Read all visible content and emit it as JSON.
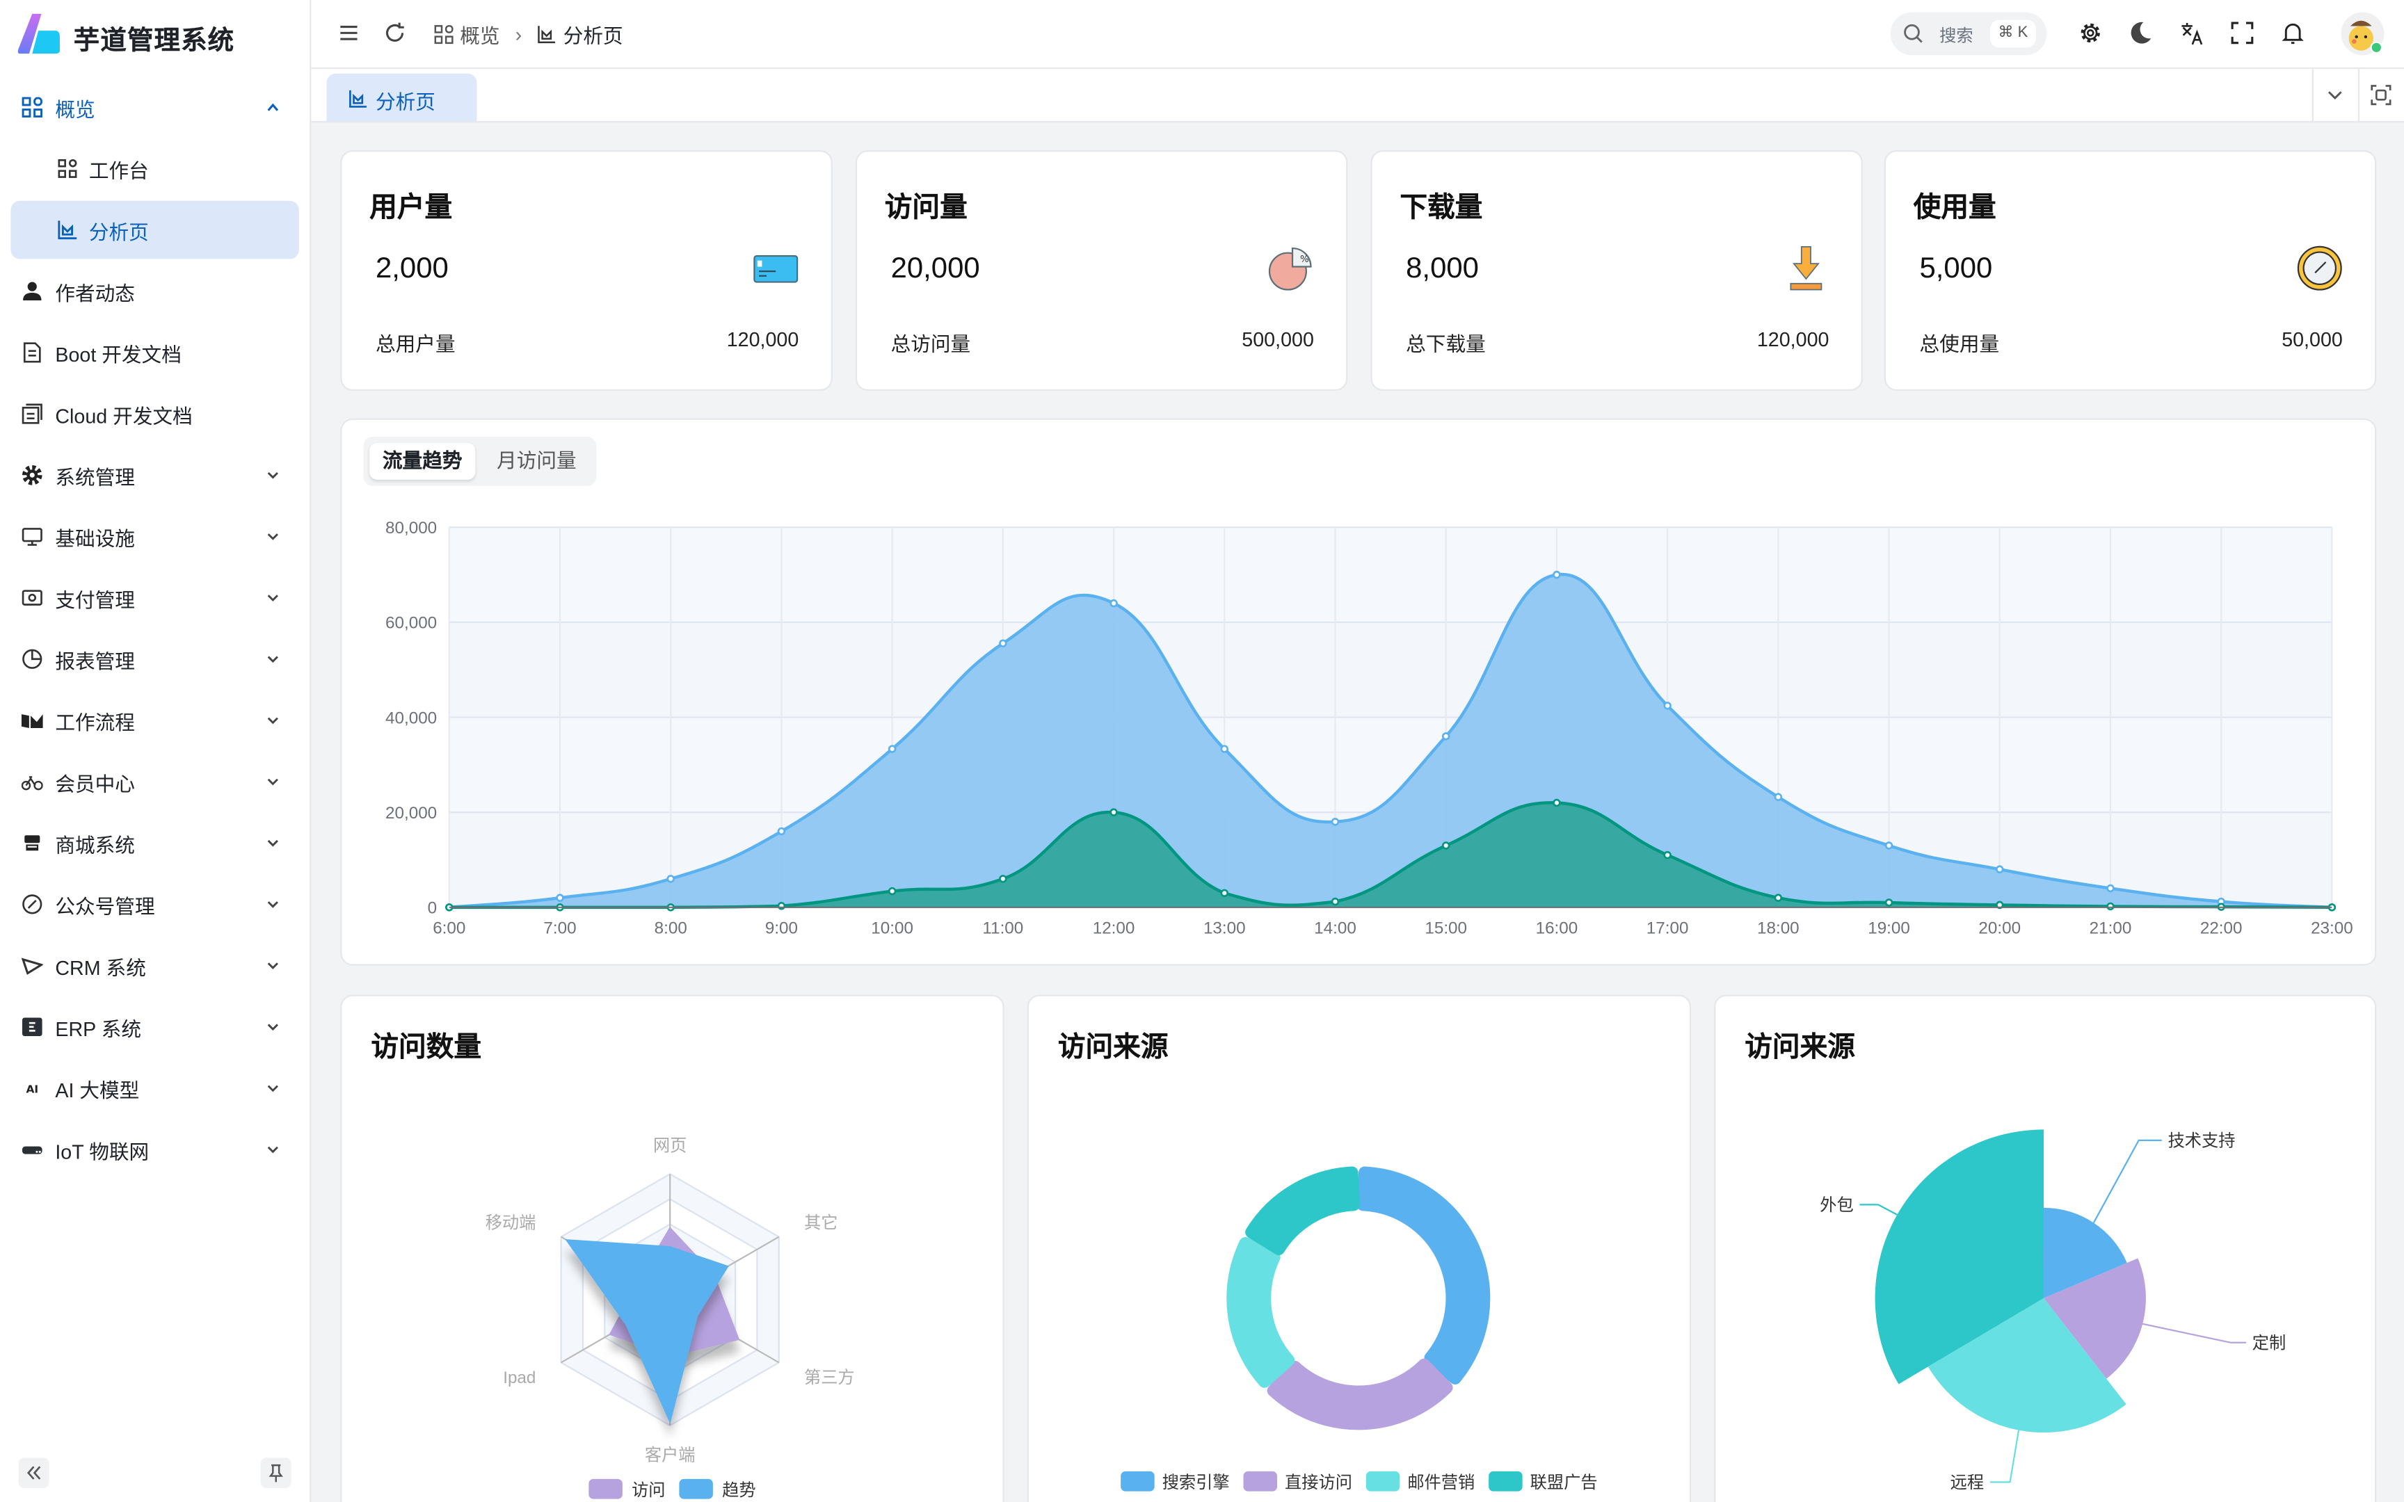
{
  "app": {
    "title": "芋道管理系统"
  },
  "sidebar": {
    "items": [
      {
        "label": "概览",
        "icon": "dashboard-icon",
        "expanded": true
      },
      {
        "label": "工作台",
        "icon": "workspace-icon"
      },
      {
        "label": "分析页",
        "icon": "analysis-icon",
        "active": true
      },
      {
        "label": "作者动态",
        "icon": "user-icon"
      },
      {
        "label": "Boot 开发文档",
        "icon": "document-icon"
      },
      {
        "label": "Cloud 开发文档",
        "icon": "documents-icon"
      },
      {
        "label": "系统管理",
        "icon": "gear-icon"
      },
      {
        "label": "基础设施",
        "icon": "monitor-icon"
      },
      {
        "label": "支付管理",
        "icon": "payment-icon"
      },
      {
        "label": "报表管理",
        "icon": "pie-chart-icon"
      },
      {
        "label": "工作流程",
        "icon": "workflow-icon"
      },
      {
        "label": "会员中心",
        "icon": "bicycle-icon"
      },
      {
        "label": "商城系统",
        "icon": "shop-icon"
      },
      {
        "label": "公众号管理",
        "icon": "compass-icon"
      },
      {
        "label": "CRM 系统",
        "icon": "crm-icon"
      },
      {
        "label": "ERP 系统",
        "icon": "erp-icon"
      },
      {
        "label": "AI 大模型",
        "icon": "ai-icon"
      },
      {
        "label": "IoT 物联网",
        "icon": "iot-icon"
      }
    ]
  },
  "header": {
    "breadcrumb": [
      "概览",
      "分析页"
    ],
    "search": {
      "placeholder": "搜索",
      "shortcut": "⌘ K"
    }
  },
  "tabs": [
    {
      "label": "分析页",
      "active": true
    }
  ],
  "stats": [
    {
      "title": "用户量",
      "value": "2,000",
      "footer_label": "总用户量",
      "footer_value": "120,000",
      "icon": "credit-card-icon"
    },
    {
      "title": "访问量",
      "value": "20,000",
      "footer_label": "总访问量",
      "footer_value": "500,000",
      "icon": "pie-chart-icon"
    },
    {
      "title": "下载量",
      "value": "8,000",
      "footer_label": "总下载量",
      "footer_value": "120,000",
      "icon": "download-icon"
    },
    {
      "title": "使用量",
      "value": "5,000",
      "footer_label": "总使用量",
      "footer_value": "50,000",
      "icon": "clock-icon"
    }
  ],
  "trend": {
    "tabs": [
      "流量趋势",
      "月访问量"
    ],
    "active_tab": 0
  },
  "bottom_cards": {
    "radar_title": "访问数量",
    "donut_title": "访问来源",
    "rose_title": "访问来源"
  },
  "colors": {
    "accent": "#0960bd",
    "blue": "#5ab1ef",
    "green": "#019680",
    "purple": "#b6a2de",
    "cyan": "#67e0e3",
    "teal": "#2ec7c9"
  },
  "chart_data": [
    {
      "type": "area",
      "categories": [
        "6:00",
        "7:00",
        "8:00",
        "9:00",
        "10:00",
        "11:00",
        "12:00",
        "13:00",
        "14:00",
        "15:00",
        "16:00",
        "17:00",
        "18:00",
        "19:00",
        "20:00",
        "21:00",
        "22:00",
        "23:00"
      ],
      "series": [
        {
          "values": [
            0,
            2000,
            6000,
            16000,
            33333,
            55555,
            64000,
            33333,
            18000,
            36000,
            70000,
            42444,
            23222,
            13000,
            8000,
            4000,
            1200,
            0
          ]
        },
        {
          "values": [
            0,
            0,
            0,
            300,
            3400,
            6000,
            20000,
            3000,
            1200,
            13000,
            22000,
            11000,
            2000,
            1000,
            500,
            200,
            100,
            0
          ]
        }
      ],
      "yticks": [
        "0",
        "20,000",
        "40,000",
        "60,000",
        "80,000"
      ],
      "ylim": [
        0,
        80000
      ],
      "grid": true
    },
    {
      "type": "radar",
      "indicators": [
        "网页",
        "其它",
        "第三方",
        "客户端",
        "Ipad",
        "移动端"
      ],
      "max": 100,
      "series": [
        {
          "name": "访问",
          "values": [
            57,
            40,
            63,
            45,
            55,
            29
          ]
        },
        {
          "name": "趋势",
          "values": [
            42,
            53,
            25,
            97,
            40,
            95
          ]
        }
      ],
      "legend": "bottom"
    },
    {
      "type": "pie",
      "variant": "donut",
      "slices": [
        {
          "name": "搜索引擎",
          "value": 1048
        },
        {
          "name": "直接访问",
          "value": 735
        },
        {
          "name": "邮件营销",
          "value": 580
        },
        {
          "name": "联盟广告",
          "value": 484
        }
      ],
      "legend": "bottom"
    },
    {
      "type": "pie",
      "variant": "rose",
      "slices": [
        {
          "name": "技术支持",
          "value": 10
        },
        {
          "name": "定制",
          "value": 11.2
        },
        {
          "name": "远程",
          "value": 14.5
        },
        {
          "name": "外包",
          "value": 18
        }
      ]
    }
  ]
}
